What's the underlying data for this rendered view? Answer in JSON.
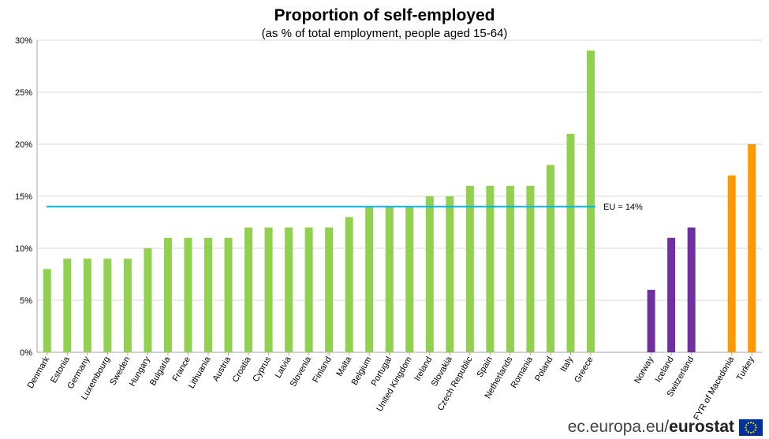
{
  "chart_data": {
    "type": "bar",
    "title": "Proportion of self-employed",
    "subtitle": "(as % of total employment, people aged 15-64)",
    "xlabel": "",
    "ylabel": "",
    "ylim": [
      0,
      30
    ],
    "y_ticks": [
      0,
      5,
      10,
      15,
      20,
      25,
      30
    ],
    "y_tick_labels": [
      "0%",
      "5%",
      "10%",
      "15%",
      "20%",
      "25%",
      "30%"
    ],
    "grid": true,
    "categories": [
      "Denmark",
      "Estonia",
      "Germany",
      "Luxembourg",
      "Sweden",
      "Hungary",
      "Bulgaria",
      "France",
      "Lithuania",
      "Austria",
      "Croatia",
      "Cyprus",
      "Latvia",
      "Slovenia",
      "Finland",
      "Malta",
      "Belgium",
      "Portugal",
      "United Kingdom",
      "Ireland",
      "Slovakia",
      "Czech Republic",
      "Spain",
      "Netherlands",
      "Romania",
      "Poland",
      "Italy",
      "Greece",
      "",
      "",
      "Norway",
      "Iceland",
      "Switzerland",
      "",
      "FYR of Macedonia",
      "Turkey"
    ],
    "values": [
      8,
      9,
      9,
      9,
      9,
      10,
      11,
      11,
      11,
      11,
      12,
      12,
      12,
      12,
      12,
      13,
      14,
      14,
      14,
      15,
      15,
      16,
      16,
      16,
      16,
      18,
      21,
      29,
      null,
      null,
      6,
      11,
      12,
      null,
      17,
      20
    ],
    "groups": [
      "eu",
      "eu",
      "eu",
      "eu",
      "eu",
      "eu",
      "eu",
      "eu",
      "eu",
      "eu",
      "eu",
      "eu",
      "eu",
      "eu",
      "eu",
      "eu",
      "eu",
      "eu",
      "eu",
      "eu",
      "eu",
      "eu",
      "eu",
      "eu",
      "eu",
      "eu",
      "eu",
      "eu",
      "gap",
      "gap",
      "efta",
      "efta",
      "efta",
      "gap",
      "candidate",
      "candidate"
    ],
    "colors": {
      "eu": "#92d050",
      "efta": "#7030a0",
      "candidate": "#ff9900",
      "reference_line": "#00b0f0",
      "grid": "#d9d9d9"
    },
    "reference_line": {
      "value": 14,
      "label": "EU = 14%"
    }
  },
  "footer": {
    "domain": "ec.europa.eu/",
    "brand": "eurostat"
  },
  "logo": {
    "icon": "eu-flag-icon"
  }
}
